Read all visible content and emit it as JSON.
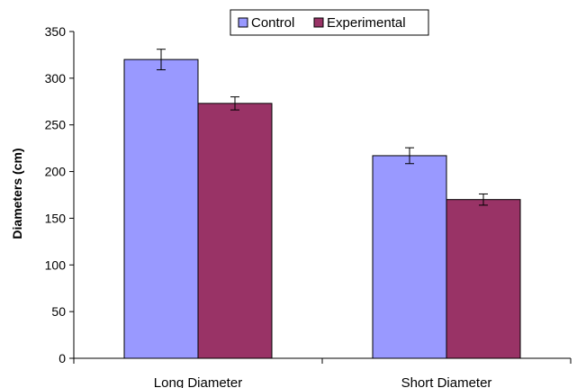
{
  "chart_data": {
    "type": "bar",
    "title": "",
    "xlabel": "",
    "ylabel": "Diameters (cm)",
    "categories": [
      "Long Diameter",
      "Short Diameter"
    ],
    "series": [
      {
        "name": "Control",
        "values": [
          320,
          217
        ],
        "errors": [
          11,
          8.5
        ],
        "color": "#9999ff"
      },
      {
        "name": "Experimental",
        "values": [
          273,
          170
        ],
        "errors": [
          7,
          6
        ],
        "color": "#993366"
      }
    ],
    "ylim": [
      0,
      350
    ],
    "yticks": [
      0,
      50,
      100,
      150,
      200,
      250,
      300,
      350
    ],
    "grid": false,
    "legend_position": "top"
  }
}
